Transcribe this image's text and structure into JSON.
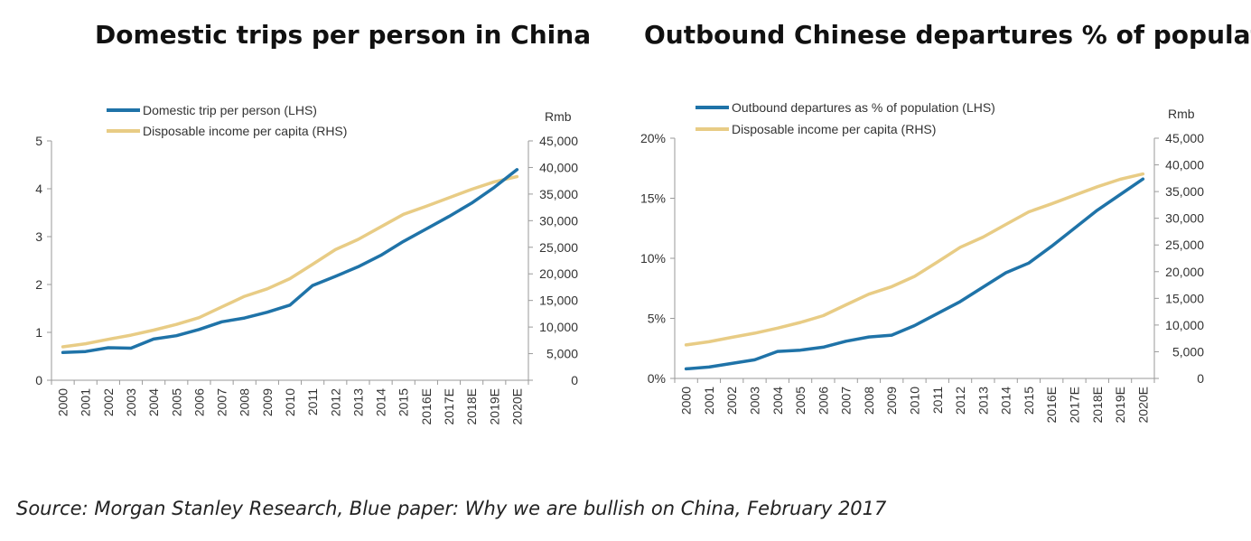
{
  "source": "Source: Morgan Stanley Research, Blue paper: Why we are bullish on China, February 2017",
  "colors": {
    "blue": "#1f73a8",
    "gold": "#e8cc85",
    "axis": "#9a9a9a"
  },
  "chart_data": [
    {
      "type": "line",
      "title": "Domestic trips per person in China",
      "categories": [
        "2000",
        "2001",
        "2002",
        "2003",
        "2004",
        "2005",
        "2006",
        "2007",
        "2008",
        "2009",
        "2010",
        "2011",
        "2012",
        "2013",
        "2014",
        "2015",
        "2016E",
        "2017E",
        "2018E",
        "2019E",
        "2020E"
      ],
      "y_left": {
        "min": 0,
        "max": 5,
        "ticks": [
          "0",
          "1",
          "2",
          "3",
          "4",
          "5"
        ],
        "tick_values": [
          0,
          1,
          2,
          3,
          4,
          5
        ]
      },
      "y_right": {
        "label": "Rmb",
        "min": 0,
        "max": 45000,
        "ticks": [
          "0",
          "5,000",
          "10,000",
          "15,000",
          "20,000",
          "25,000",
          "30,000",
          "35,000",
          "40,000",
          "45,000"
        ],
        "tick_values": [
          0,
          5000,
          10000,
          15000,
          20000,
          25000,
          30000,
          35000,
          40000,
          45000
        ]
      },
      "series": [
        {
          "name": "Domestic trip per person (LHS)",
          "axis": "left",
          "color": "#1f73a8",
          "values": [
            0.58,
            0.6,
            0.68,
            0.67,
            0.86,
            0.93,
            1.06,
            1.22,
            1.3,
            1.42,
            1.57,
            1.98,
            2.17,
            2.37,
            2.61,
            2.9,
            3.16,
            3.42,
            3.7,
            4.03,
            4.4
          ]
        },
        {
          "name": "Disposable income per capita (RHS)",
          "axis": "right",
          "color": "#e8cc85",
          "values": [
            6280,
            6860,
            7700,
            8470,
            9420,
            10490,
            11760,
            13790,
            15780,
            17180,
            19110,
            21810,
            24560,
            26470,
            28840,
            31200,
            32700,
            34300,
            35900,
            37300,
            38300
          ]
        }
      ]
    },
    {
      "type": "line",
      "title": "Outbound Chinese departures % of population",
      "categories": [
        "2000",
        "2001",
        "2002",
        "2003",
        "2004",
        "2005",
        "2006",
        "2007",
        "2008",
        "2009",
        "2010",
        "2011",
        "2012",
        "2013",
        "2014",
        "2015",
        "2016E",
        "2017E",
        "2018E",
        "2019E",
        "2020E"
      ],
      "y_left": {
        "min": 0,
        "max": 20,
        "ticks": [
          "0%",
          "5%",
          "10%",
          "15%",
          "20%"
        ],
        "tick_values": [
          0,
          5,
          10,
          15,
          20
        ]
      },
      "y_right": {
        "label": "Rmb",
        "min": 0,
        "max": 45000,
        "ticks": [
          "0",
          "5,000",
          "10,000",
          "15,000",
          "20,000",
          "25,000",
          "30,000",
          "35,000",
          "40,000",
          "45,000"
        ],
        "tick_values": [
          0,
          5000,
          10000,
          15000,
          20000,
          25000,
          30000,
          35000,
          40000,
          45000
        ]
      },
      "series": [
        {
          "name": "Outbound departures as % of population (LHS)",
          "axis": "left",
          "color": "#1f73a8",
          "values": [
            0.8,
            0.95,
            1.25,
            1.55,
            2.25,
            2.35,
            2.6,
            3.1,
            3.45,
            3.6,
            4.4,
            5.4,
            6.4,
            7.6,
            8.8,
            9.6,
            11.0,
            12.5,
            14.0,
            15.3,
            16.6
          ]
        },
        {
          "name": "Disposable income per capita (RHS)",
          "axis": "right",
          "color": "#e8cc85",
          "values": [
            6280,
            6860,
            7700,
            8470,
            9420,
            10490,
            11760,
            13790,
            15780,
            17180,
            19110,
            21810,
            24560,
            26470,
            28840,
            31200,
            32700,
            34300,
            35900,
            37300,
            38300
          ]
        }
      ]
    }
  ]
}
